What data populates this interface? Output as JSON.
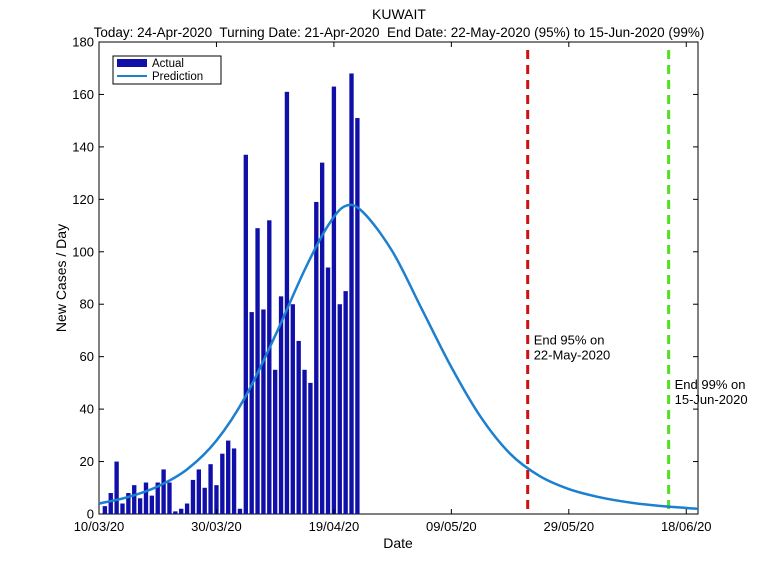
{
  "chart_data": {
    "type": "bar",
    "title": "KUWAIT",
    "subtitle": "Today: 24-Apr-2020  Turning Date: 21-Apr-2020  End Date: 22-May-2020 (95%) to 15-Jun-2020 (99%)",
    "xlabel": "Date",
    "ylabel": "New Cases / Day",
    "x_start": "10/03/20",
    "x_end": "20/06/20",
    "ylim": [
      0,
      180
    ],
    "yticks": [
      0,
      20,
      40,
      60,
      80,
      100,
      120,
      140,
      160,
      180
    ],
    "xticks": [
      {
        "date": "10/03/20",
        "label": "10/03/20"
      },
      {
        "date": "30/03/20",
        "label": "30/03/20"
      },
      {
        "date": "19/04/20",
        "label": "19/04/20"
      },
      {
        "date": "09/05/20",
        "label": "09/05/20"
      },
      {
        "date": "29/05/20",
        "label": "29/05/20"
      },
      {
        "date": "18/06/20",
        "label": "18/06/20"
      }
    ],
    "legend": {
      "placement": "top-left",
      "entries": [
        "Actual",
        "Prediction"
      ]
    },
    "colors": {
      "actual": "#1010a8",
      "prediction": "#1c7fd0",
      "end95": "#d01010",
      "end99": "#50e020"
    },
    "series": [
      {
        "name": "Actual",
        "type": "bar",
        "start_date": "11/03/20",
        "values": [
          3,
          8,
          20,
          4,
          8,
          11,
          6,
          12,
          7,
          12,
          17,
          12,
          1,
          2,
          4,
          13,
          17,
          10,
          19,
          11,
          23,
          28,
          25,
          2,
          137,
          77,
          109,
          78,
          112,
          55,
          83,
          161,
          80,
          66,
          55,
          50,
          119,
          134,
          94,
          163,
          80,
          85,
          168,
          151
        ]
      },
      {
        "name": "Prediction",
        "type": "line",
        "peak_date": "21/04/20",
        "peak_value": 117.5,
        "points": [
          {
            "x": "10/03/20",
            "y": 4
          },
          {
            "x": "15/03/20",
            "y": 6.5
          },
          {
            "x": "20/03/20",
            "y": 10.5
          },
          {
            "x": "25/03/20",
            "y": 17
          },
          {
            "x": "30/03/20",
            "y": 28
          },
          {
            "x": "04/04/20",
            "y": 45
          },
          {
            "x": "09/04/20",
            "y": 68
          },
          {
            "x": "14/04/20",
            "y": 93
          },
          {
            "x": "18/04/20",
            "y": 110
          },
          {
            "x": "21/04/20",
            "y": 117.5
          },
          {
            "x": "24/04/20",
            "y": 115
          },
          {
            "x": "29/04/20",
            "y": 100
          },
          {
            "x": "04/05/20",
            "y": 78
          },
          {
            "x": "09/05/20",
            "y": 56
          },
          {
            "x": "14/05/20",
            "y": 37
          },
          {
            "x": "19/05/20",
            "y": 23
          },
          {
            "x": "24/05/20",
            "y": 14.5
          },
          {
            "x": "29/05/20",
            "y": 9.5
          },
          {
            "x": "03/06/20",
            "y": 6.5
          },
          {
            "x": "08/06/20",
            "y": 4.5
          },
          {
            "x": "13/06/20",
            "y": 3.2
          },
          {
            "x": "18/06/20",
            "y": 2.3
          },
          {
            "x": "20/06/20",
            "y": 2
          }
        ]
      }
    ],
    "annotations": [
      {
        "id": "end95",
        "date": "22/05/20",
        "line1": "End 95% on",
        "line2": "22-May-2020",
        "label_y": 62
      },
      {
        "id": "end99",
        "date": "15/06/20",
        "line1": "End 99% on",
        "line2": "15-Jun-2020",
        "label_y": 45
      }
    ]
  }
}
